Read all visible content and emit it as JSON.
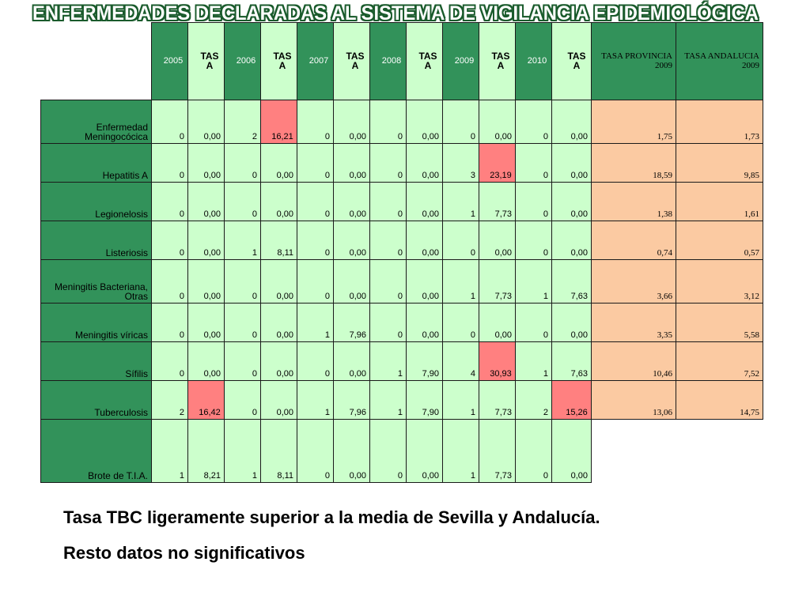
{
  "title": "ENFERMEDADES DECLARADAS AL SISTEMA DE VIGILANCIA EPIDEMIOLÓGICA",
  "headers": [
    "2005",
    "TASA",
    "2006",
    "TASA",
    "2007",
    "TASA",
    "2008",
    "TASA",
    "2009",
    "TASA",
    "2010",
    "TASA",
    "TASA PROVINCIA 2009",
    "TASA ANDALUCIA 2009"
  ],
  "rows": [
    {
      "name": "Enfermedad Meningocócica",
      "cells": [
        "0",
        "0,00",
        "2",
        "16,21",
        "0",
        "0,00",
        "0",
        "0,00",
        "0",
        "0,00",
        "0",
        "0,00",
        "1,75",
        "1,73"
      ]
    },
    {
      "name": "Hepatitis A",
      "cells": [
        "0",
        "0,00",
        "0",
        "0,00",
        "0",
        "0,00",
        "0",
        "0,00",
        "3",
        "23,19",
        "0",
        "0,00",
        "18,59",
        "9,85"
      ]
    },
    {
      "name": "Legionelosis",
      "cells": [
        "0",
        "0,00",
        "0",
        "0,00",
        "0",
        "0,00",
        "0",
        "0,00",
        "1",
        "7,73",
        "0",
        "0,00",
        "1,38",
        "1,61"
      ]
    },
    {
      "name": "Listeriosis",
      "cells": [
        "0",
        "0,00",
        "1",
        "8,11",
        "0",
        "0,00",
        "0",
        "0,00",
        "0",
        "0,00",
        "0",
        "0,00",
        "0,74",
        "0,57"
      ]
    },
    {
      "name": "Meningitis Bacteriana, Otras",
      "cells": [
        "0",
        "0,00",
        "0",
        "0,00",
        "0",
        "0,00",
        "0",
        "0,00",
        "1",
        "7,73",
        "1",
        "7,63",
        "3,66",
        "3,12"
      ]
    },
    {
      "name": "Meningitis víricas",
      "cells": [
        "0",
        "0,00",
        "0",
        "0,00",
        "1",
        "7,96",
        "0",
        "0,00",
        "0",
        "0,00",
        "0",
        "0,00",
        "3,35",
        "5,58"
      ]
    },
    {
      "name": "Sífilis",
      "cells": [
        "0",
        "0,00",
        "0",
        "0,00",
        "0",
        "0,00",
        "1",
        "7,90",
        "4",
        "30,93",
        "1",
        "7,63",
        "10,46",
        "7,52"
      ]
    },
    {
      "name": "Tuberculosis",
      "cells": [
        "2",
        "16,42",
        "0",
        "0,00",
        "1",
        "7,96",
        "1",
        "7,90",
        "1",
        "7,73",
        "2",
        "15,26",
        "13,06",
        "14,75"
      ]
    },
    {
      "name": "Brote de T.I.A.",
      "cells": [
        "1",
        "8,21",
        "1",
        "8,11",
        "0",
        "0,00",
        "0",
        "0,00",
        "1",
        "7,73",
        "0",
        "0,00",
        "",
        ""
      ]
    }
  ],
  "highlighted_cells": [
    "0.3",
    "1.9",
    "6.9",
    "7.1",
    "7.11"
  ],
  "colors": {
    "dark_green": "#32925a",
    "light_green": "#ccffcc",
    "highlight": "#ff8080",
    "orange": "#fbcaa2"
  },
  "captions": [
    "Tasa TBC ligeramente superior a la media de Sevilla y Andalucía.",
    "Resto datos no significativos"
  ]
}
